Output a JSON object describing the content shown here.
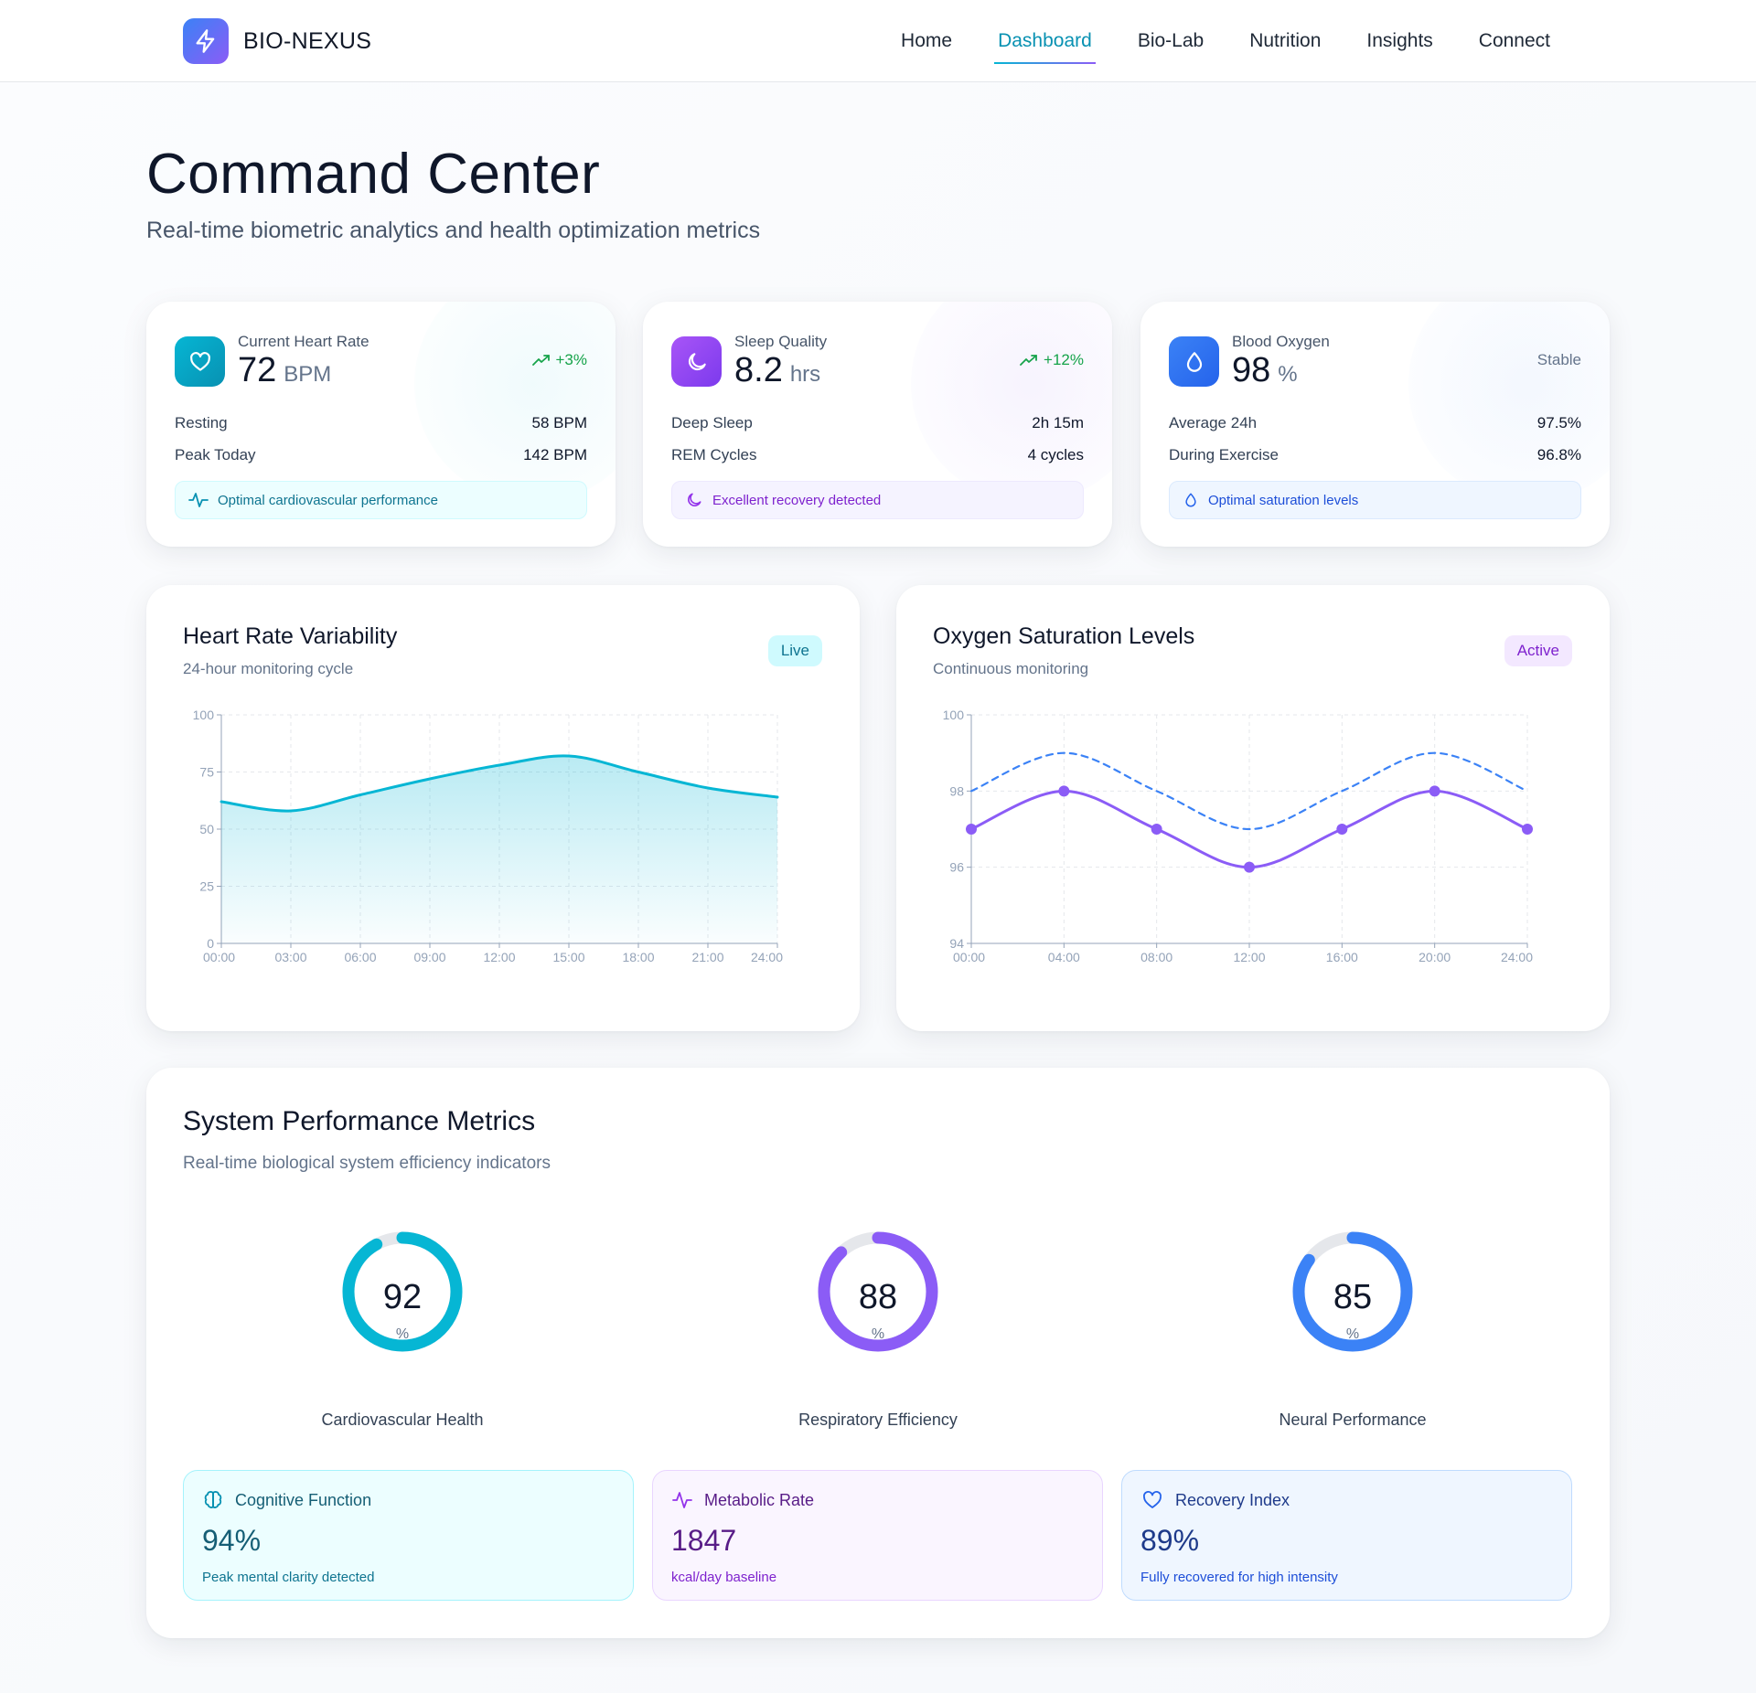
{
  "brand": {
    "name": "BIO-NEXUS",
    "icon": "lightning-icon"
  },
  "nav": {
    "items": [
      {
        "label": "Home",
        "active": false
      },
      {
        "label": "Dashboard",
        "active": true
      },
      {
        "label": "Bio-Lab",
        "active": false
      },
      {
        "label": "Nutrition",
        "active": false
      },
      {
        "label": "Insights",
        "active": false
      },
      {
        "label": "Connect",
        "active": false
      }
    ]
  },
  "header": {
    "title": "Command Center",
    "subtitle": "Real-time biometric analytics and health optimization metrics"
  },
  "stats": [
    {
      "icon": "heart-icon",
      "label": "Current Heart Rate",
      "value": "72",
      "unit": "BPM",
      "trend": "+3%",
      "rows": [
        {
          "label": "Resting",
          "value": "58 BPM"
        },
        {
          "label": "Peak Today",
          "value": "142 BPM"
        }
      ],
      "note_icon": "pulse-icon",
      "note": "Optimal cardiovascular performance",
      "accent": "#06b6d4"
    },
    {
      "icon": "moon-icon",
      "label": "Sleep Quality",
      "value": "8.2",
      "unit": "hrs",
      "trend": "+12%",
      "rows": [
        {
          "label": "Deep Sleep",
          "value": "2h 15m"
        },
        {
          "label": "REM Cycles",
          "value": "4 cycles"
        }
      ],
      "note_icon": "moon-icon",
      "note": "Excellent recovery detected",
      "accent": "#8b5cf6"
    },
    {
      "icon": "droplet-icon",
      "label": "Blood Oxygen",
      "value": "98",
      "unit": "%",
      "trend": "Stable",
      "rows": [
        {
          "label": "Average 24h",
          "value": "97.5%"
        },
        {
          "label": "During Exercise",
          "value": "96.8%"
        }
      ],
      "note_icon": "droplet-icon",
      "note": "Optimal saturation levels",
      "accent": "#3b82f6"
    }
  ],
  "charts": {
    "hrv": {
      "title": "Heart Rate Variability",
      "subtitle": "24-hour monitoring cycle",
      "badge": "Live"
    },
    "oxygen": {
      "title": "Oxygen Saturation Levels",
      "subtitle": "Continuous monitoring",
      "badge": "Active"
    }
  },
  "chart_data": [
    {
      "type": "area",
      "x": [
        "00:00",
        "03:00",
        "06:00",
        "09:00",
        "12:00",
        "15:00",
        "18:00",
        "21:00",
        "24:00"
      ],
      "series": [
        {
          "values": [
            62,
            58,
            65,
            72,
            78,
            82,
            75,
            68,
            64
          ],
          "color": "#06b6d4"
        }
      ],
      "yticks": [
        0,
        25,
        50,
        75,
        100
      ],
      "ylim": [
        0,
        100
      ],
      "grid": true
    },
    {
      "type": "line",
      "x": [
        "00:00",
        "04:00",
        "08:00",
        "12:00",
        "16:00",
        "20:00",
        "24:00"
      ],
      "series": [
        {
          "values": [
            97,
            98,
            97,
            96,
            97,
            98,
            97
          ],
          "color": "#8b5cf6",
          "style": "solid",
          "markers": true
        },
        {
          "values": [
            98,
            99,
            98,
            97,
            98,
            99,
            98
          ],
          "color": "#3b82f6",
          "style": "dashed",
          "markers": false
        }
      ],
      "yticks": [
        94,
        96,
        98,
        100
      ],
      "ylim": [
        94,
        100
      ],
      "grid": true
    }
  ],
  "metrics": {
    "title": "System Performance Metrics",
    "subtitle": "Real-time biological system efficiency indicators",
    "gauges": [
      {
        "value": 92,
        "unit": "%",
        "label": "Cardiovascular Health",
        "color": "#06b6d4"
      },
      {
        "value": 88,
        "unit": "%",
        "label": "Respiratory Efficiency",
        "color": "#8b5cf6"
      },
      {
        "value": 85,
        "unit": "%",
        "label": "Neural Performance",
        "color": "#3b82f6"
      }
    ],
    "tiles": [
      {
        "icon": "brain-icon",
        "label": "Cognitive Function",
        "value": "94%",
        "note": "Peak mental clarity detected"
      },
      {
        "icon": "pulse-icon",
        "label": "Metabolic Rate",
        "value": "1847",
        "note": "kcal/day baseline"
      },
      {
        "icon": "heart-icon",
        "label": "Recovery Index",
        "value": "89%",
        "note": "Fully recovered for high intensity"
      }
    ]
  }
}
